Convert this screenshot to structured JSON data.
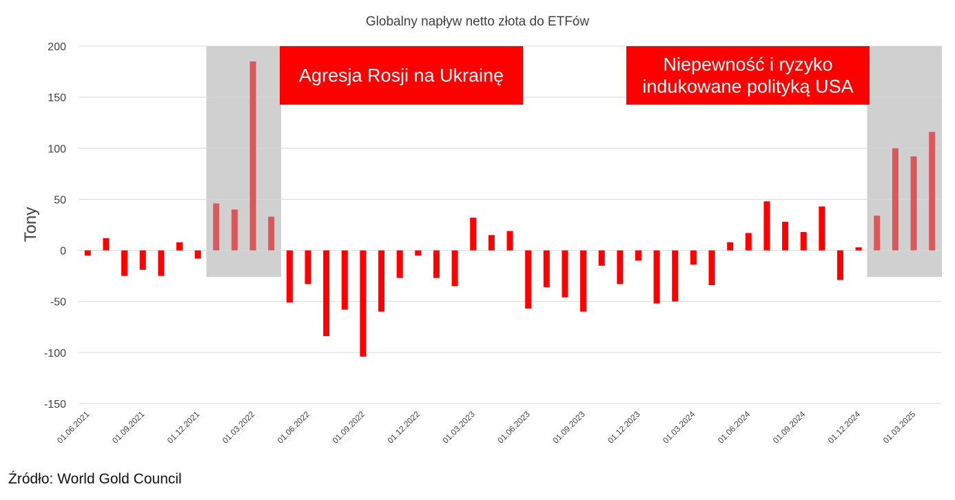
{
  "chart_data": {
    "type": "bar",
    "title": "Globalny napływ netto złota do ETFów",
    "ylabel": "Tony",
    "xlabel": "",
    "ylim": [
      -150,
      200
    ],
    "yticks": [
      200,
      150,
      100,
      50,
      0,
      -50,
      -100,
      -150
    ],
    "grid": true,
    "categories": [
      "06.2021",
      "07.2021",
      "08.2021",
      "09.2021",
      "10.2021",
      "11.2021",
      "12.2021",
      "01.2022",
      "02.2022",
      "03.2022",
      "04.2022",
      "05.2022",
      "06.2022",
      "07.2022",
      "08.2022",
      "09.2022",
      "10.2022",
      "11.2022",
      "12.2022",
      "01.2023",
      "02.2023",
      "03.2023",
      "04.2023",
      "05.2023",
      "06.2023",
      "07.2023",
      "08.2023",
      "09.2023",
      "10.2023",
      "11.2023",
      "12.2023",
      "01.2024",
      "02.2024",
      "03.2024",
      "04.2024",
      "05.2024",
      "06.2024",
      "07.2024",
      "08.2024",
      "09.2024",
      "10.2024",
      "11.2024",
      "12.2024",
      "01.2025",
      "02.2025",
      "03.2025",
      "04.2025"
    ],
    "values": [
      -5,
      12,
      -25,
      -19,
      -25,
      8,
      -8,
      46,
      40,
      185,
      33,
      -51,
      -33,
      -84,
      -58,
      -104,
      -60,
      -27,
      -5,
      -27,
      -35,
      32,
      15,
      19,
      -57,
      -36,
      -46,
      -60,
      -15,
      -33,
      -10,
      -52,
      -50,
      -14,
      -34,
      8,
      17,
      48,
      28,
      18,
      43,
      -29,
      3,
      34,
      100,
      92,
      116
    ],
    "xtick_labels": [
      "01.06.2021",
      "01.09.2021",
      "01.12.2021",
      "01.03.2022",
      "01.06.2022",
      "01.09.2022",
      "01.12.2022",
      "01.03.2023",
      "01.06.2023",
      "01.09.2023",
      "01.12.2023",
      "01.03.2024",
      "01.06.2024",
      "01.09.2024",
      "01.12.2024",
      "01.03.2025"
    ],
    "colors": {
      "bar": "#ff0000",
      "bar_highlighted": "#d9585a",
      "shade": "#d0d0d0",
      "annotation_bg": "#ff0000",
      "annotation_text": "#ffffff"
    },
    "shaded_periods": [
      {
        "from": "01.2022",
        "to": "04.2022"
      },
      {
        "from": "01.2025",
        "to": "04.2025"
      }
    ],
    "annotations": [
      {
        "lines": [
          "Agresja Rosji na Ukrainę"
        ]
      },
      {
        "lines": [
          "Niepewność i ryzyko",
          "indukowane polityką USA"
        ]
      }
    ]
  },
  "source": "Źródło: World Gold Council"
}
